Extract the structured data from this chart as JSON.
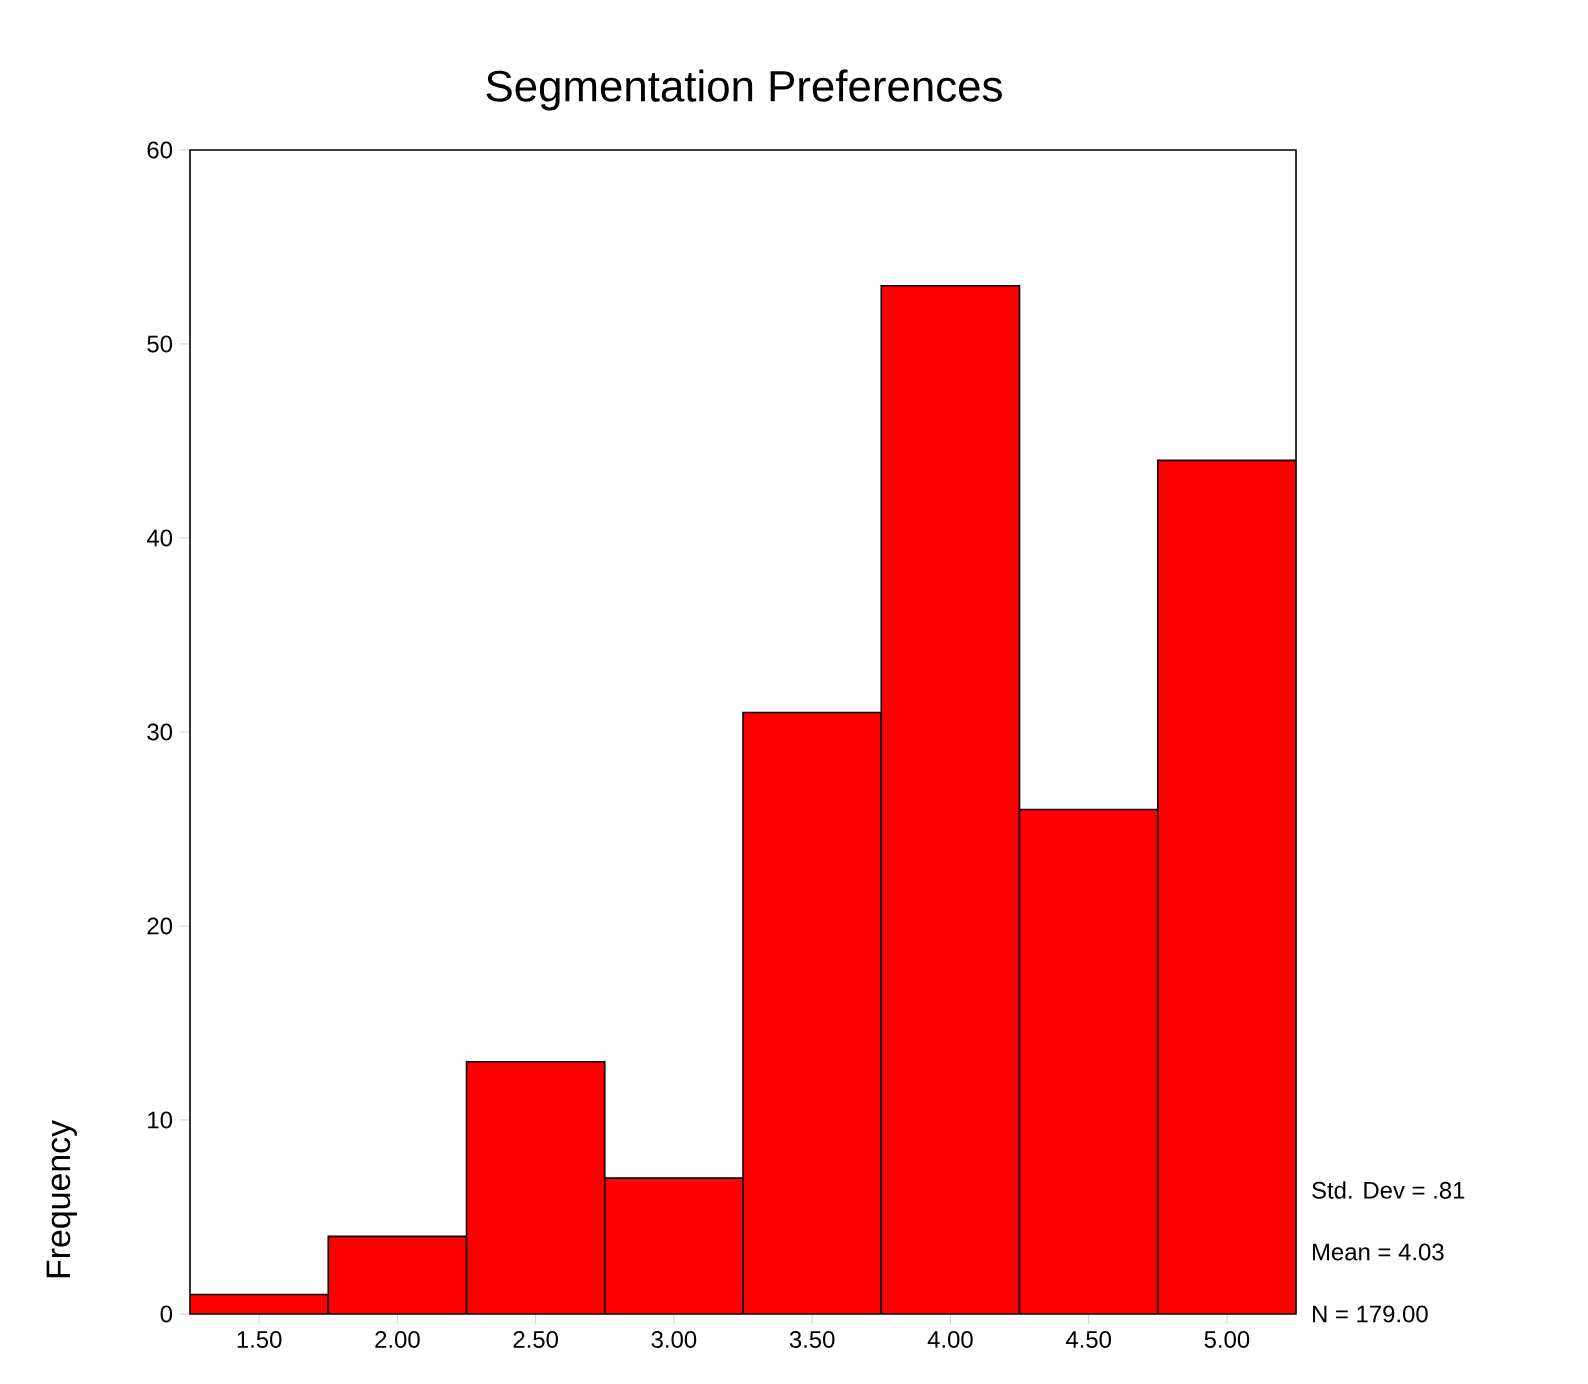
{
  "chart_data": {
    "type": "histogram",
    "title": "Segmentation Preferences",
    "ylabel": "Frequency",
    "bins": [
      1.25,
      1.75,
      2.25,
      2.75,
      3.25,
      3.75,
      4.25,
      4.75,
      5.25
    ],
    "values": [
      1,
      4,
      13,
      7,
      31,
      53,
      26,
      44
    ],
    "color": "#ff0000",
    "xlim": [
      1.25,
      5.25
    ],
    "xticks": [
      {
        "value": 1.5,
        "label": "1.50"
      },
      {
        "value": 2.0,
        "label": "2.00"
      },
      {
        "value": 2.5,
        "label": "2.50"
      },
      {
        "value": 3.0,
        "label": "3.00"
      },
      {
        "value": 3.5,
        "label": "3.50"
      },
      {
        "value": 4.0,
        "label": "4.00"
      },
      {
        "value": 4.5,
        "label": "4.50"
      },
      {
        "value": 5.0,
        "label": "5.00"
      }
    ],
    "ylim": [
      0,
      60
    ],
    "yticks": [
      0,
      10,
      20,
      30,
      40,
      50,
      60
    ],
    "annotations": [
      "Std. Dev = .81",
      "Mean = 4.03",
      "N = 179.00"
    ]
  }
}
